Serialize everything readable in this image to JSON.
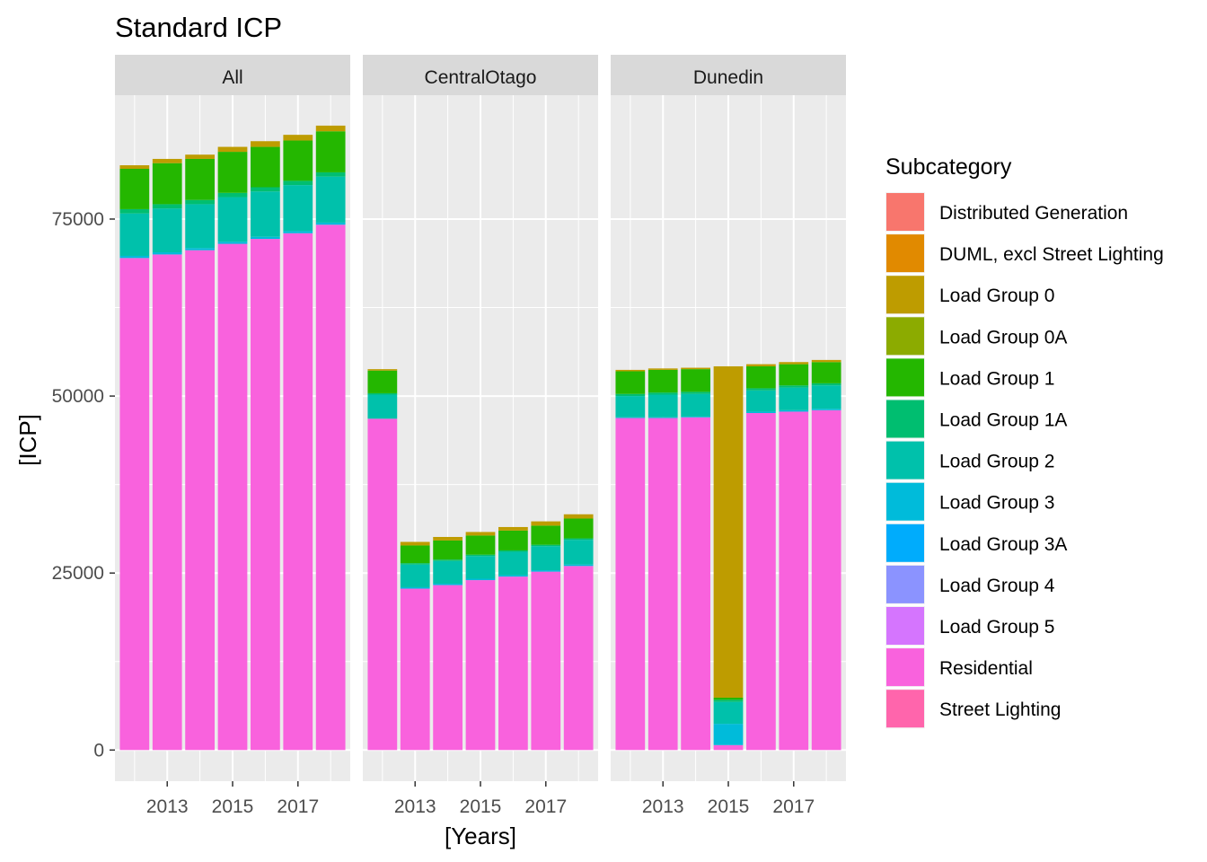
{
  "chart_data": {
    "type": "bar",
    "stacked": true,
    "title": "Standard ICP",
    "xlabel": "[Years]",
    "ylabel": "[ICP]",
    "x": [
      2012,
      2013,
      2014,
      2015,
      2016,
      2017,
      2018
    ],
    "x_ticks": [
      2013,
      2015,
      2017
    ],
    "x_tick_labels": [
      "2013",
      "2015",
      "2017"
    ],
    "ylim": [
      -4400,
      92500
    ],
    "y_ticks": [
      0,
      25000,
      50000,
      75000
    ],
    "y_tick_labels": [
      "0",
      "25000",
      "50000",
      "75000"
    ],
    "legend_title": "Subcategory",
    "legend_position": "right",
    "subcategories": [
      {
        "name": "Distributed Generation",
        "color": "#F8766D"
      },
      {
        "name": "DUML, excl Street Lighting",
        "color": "#E18A00"
      },
      {
        "name": "Load Group 0",
        "color": "#BE9C00"
      },
      {
        "name": "Load Group 0A",
        "color": "#8CAB00"
      },
      {
        "name": "Load Group 1",
        "color": "#24B700"
      },
      {
        "name": "Load Group 1A",
        "color": "#00BE70"
      },
      {
        "name": "Load Group 2",
        "color": "#00C1AB"
      },
      {
        "name": "Load Group 3",
        "color": "#00BBDA"
      },
      {
        "name": "Load Group 3A",
        "color": "#00ACFC"
      },
      {
        "name": "Load Group 4",
        "color": "#8B93FF"
      },
      {
        "name": "Load Group 5",
        "color": "#D575FE"
      },
      {
        "name": "Residential",
        "color": "#F962DD"
      },
      {
        "name": "Street Lighting",
        "color": "#FF65AC"
      }
    ],
    "panels": [
      {
        "name": "All",
        "series": {
          "Residential": [
            69500,
            70000,
            70600,
            71500,
            72200,
            73000,
            74200
          ],
          "Load Group 3": [
            300,
            300,
            300,
            300,
            300,
            300,
            300
          ],
          "Load Group 2": [
            6000,
            6200,
            6200,
            6300,
            6400,
            6500,
            6500
          ],
          "Load Group 1A": [
            600,
            600,
            600,
            600,
            600,
            600,
            600
          ],
          "Load Group 1": [
            5700,
            5800,
            5800,
            5800,
            5700,
            5700,
            5800
          ],
          "Load Group 0": [
            500,
            600,
            600,
            700,
            800,
            800,
            800
          ]
        }
      },
      {
        "name": "CentralOtago",
        "series": {
          "Residential": [
            46800,
            22800,
            23300,
            24000,
            24500,
            25200,
            26000
          ],
          "Load Group 3": [
            0,
            200,
            200,
            200,
            200,
            200,
            200
          ],
          "Load Group 2": [
            3400,
            3200,
            3200,
            3200,
            3300,
            3400,
            3500
          ],
          "Load Group 1A": [
            200,
            200,
            200,
            200,
            200,
            200,
            200
          ],
          "Load Group 1": [
            3200,
            2500,
            2700,
            2700,
            2800,
            2700,
            2800
          ],
          "Load Group 0": [
            200,
            500,
            500,
            500,
            500,
            600,
            600
          ]
        }
      },
      {
        "name": "Dunedin",
        "series": {
          "Residential": [
            46900,
            46900,
            47000,
            700,
            47600,
            47800,
            48000
          ],
          "Load Group 3": [
            100,
            100,
            100,
            3000,
            200,
            200,
            200
          ],
          "Load Group 2": [
            3000,
            3200,
            3200,
            3100,
            3000,
            3200,
            3300
          ],
          "Load Group 1A": [
            300,
            300,
            300,
            300,
            300,
            300,
            300
          ],
          "Load Group 1": [
            3200,
            3200,
            3200,
            300,
            3100,
            3000,
            3000
          ],
          "Load Group 0": [
            200,
            200,
            200,
            46800,
            300,
            300,
            300
          ]
        }
      }
    ]
  }
}
